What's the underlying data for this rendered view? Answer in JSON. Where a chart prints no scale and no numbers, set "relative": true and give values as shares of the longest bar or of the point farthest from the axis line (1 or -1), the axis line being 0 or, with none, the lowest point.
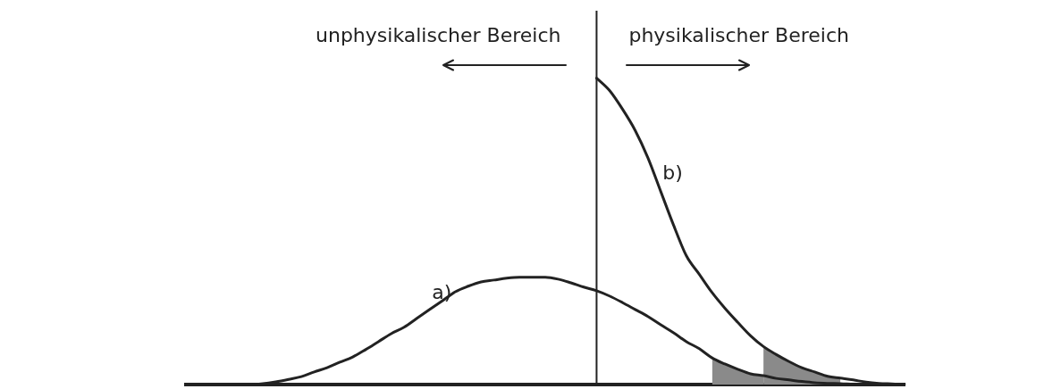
{
  "chart_data": {
    "type": "line",
    "relative": true,
    "categories": [
      null,
      null,
      null,
      null,
      null,
      null,
      null,
      null,
      null,
      null,
      null,
      null,
      null,
      null,
      null,
      null,
      null,
      null,
      null,
      null,
      null,
      null,
      null,
      null,
      null,
      null,
      null,
      null,
      null,
      null,
      null,
      null,
      null,
      null,
      null,
      null,
      null,
      null,
      null,
      null,
      null,
      null,
      null,
      null,
      null,
      null,
      null,
      null,
      null,
      null,
      null,
      null,
      null,
      null,
      null,
      null,
      null
    ],
    "series": [
      {
        "name": "a)",
        "color": "#222222",
        "values": [
          0,
          0,
          0,
          0,
          0,
          0,
          0.003,
          0.009,
          0.017,
          0.026,
          0.041,
          0.055,
          0.073,
          0.09,
          0.114,
          0.14,
          0.166,
          0.187,
          0.216,
          0.245,
          0.274,
          0.303,
          0.321,
          0.335,
          0.341,
          0.347,
          0.35,
          0.35,
          0.35,
          0.344,
          0.332,
          0.318,
          0.306,
          0.289,
          0.268,
          0.245,
          0.222,
          0.195,
          0.169,
          0.14,
          0.117,
          0.087,
          0.067,
          0.05,
          0.035,
          0.029,
          0.02,
          0.015,
          0.01,
          0.006,
          0.004,
          0.003,
          0.001,
          0,
          0,
          0,
          0
        ]
      },
      {
        "name": "b)",
        "color": "#222222",
        "values": [
          null,
          null,
          null,
          null,
          null,
          null,
          null,
          null,
          null,
          null,
          null,
          null,
          null,
          null,
          null,
          null,
          null,
          null,
          null,
          null,
          null,
          null,
          null,
          null,
          null,
          null,
          null,
          null,
          null,
          null,
          null,
          null,
          1,
          0.96,
          0.9,
          0.83,
          0.74,
          0.63,
          0.52,
          0.42,
          0.36,
          0.3,
          0.249,
          0.203,
          0.159,
          0.124,
          0.098,
          0.075,
          0.055,
          0.041,
          0.027,
          0.021,
          0.015,
          0.008,
          0.004,
          0.002,
          0
        ]
      },
      {
        "type": "area",
        "color": "#8a8a8a",
        "values": [
          null,
          null,
          null,
          null,
          null,
          null,
          null,
          null,
          null,
          null,
          null,
          null,
          null,
          null,
          null,
          null,
          null,
          null,
          null,
          null,
          null,
          null,
          null,
          null,
          null,
          null,
          null,
          null,
          null,
          null,
          null,
          null,
          null,
          null,
          null,
          null,
          null,
          null,
          null,
          null,
          null,
          0.087,
          0.067,
          0.05,
          0.035,
          0.029,
          null,
          null,
          null,
          null,
          null,
          null,
          null,
          null,
          null,
          null,
          null
        ]
      },
      {
        "type": "area",
        "color": "#8a8a8a",
        "values": [
          null,
          null,
          null,
          null,
          null,
          null,
          null,
          null,
          null,
          null,
          null,
          null,
          null,
          null,
          null,
          null,
          null,
          null,
          null,
          null,
          null,
          null,
          null,
          null,
          null,
          null,
          null,
          null,
          null,
          null,
          null,
          null,
          null,
          null,
          null,
          null,
          null,
          null,
          null,
          null,
          null,
          null,
          null,
          null,
          null,
          0.124,
          0.098,
          0.075,
          0.055,
          0.041,
          0.027,
          0.021,
          null,
          null,
          null,
          null,
          null
        ]
      }
    ],
    "annotations": [
      "unphysikalischer Bereich",
      "physikalischer Bereich"
    ],
    "marker": "none",
    "legend": false,
    "grid": false,
    "tick_labels": false
  }
}
